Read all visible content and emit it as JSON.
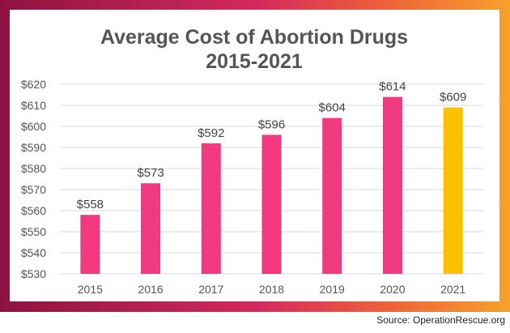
{
  "chart_data": {
    "type": "bar",
    "title_lines": [
      "Average Cost of Abortion Drugs",
      "2015-2021"
    ],
    "categories": [
      "2015",
      "2016",
      "2017",
      "2018",
      "2019",
      "2020",
      "2021"
    ],
    "values": [
      558,
      573,
      592,
      596,
      604,
      614,
      609
    ],
    "value_labels": [
      "$558",
      "$573",
      "$592",
      "$596",
      "$604",
      "$614",
      "$609"
    ],
    "yticks": [
      530,
      540,
      550,
      560,
      570,
      580,
      590,
      600,
      610,
      620
    ],
    "ytick_labels": [
      "$530",
      "$540",
      "$550",
      "$560",
      "$570",
      "$580",
      "$590",
      "$600",
      "$610",
      "$620"
    ],
    "ylim": [
      530,
      620
    ],
    "grid": true,
    "legend": "none",
    "colors": {
      "bar": "#f0397e",
      "highlight_bar": "#ffc000",
      "highlight_index": 6
    }
  },
  "source": "Source: OperationRescue.org"
}
